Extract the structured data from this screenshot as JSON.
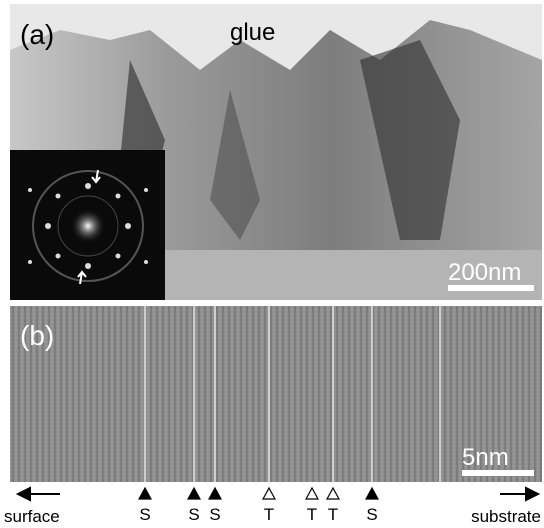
{
  "panel_a": {
    "label": "(a)",
    "annotation": "glue",
    "scale_bar": "200nm"
  },
  "panel_b": {
    "label": "(b)",
    "scale_bar": "5nm"
  },
  "markers": [
    {
      "label": "S",
      "style": "filled"
    },
    {
      "label": "S",
      "style": "filled"
    },
    {
      "label": "S",
      "style": "filled"
    },
    {
      "label": "T",
      "style": "open"
    },
    {
      "label": "T",
      "style": "open"
    },
    {
      "label": "T",
      "style": "open"
    },
    {
      "label": "S",
      "style": "filled"
    }
  ],
  "direction": {
    "left": "surface",
    "right": "substrate"
  }
}
